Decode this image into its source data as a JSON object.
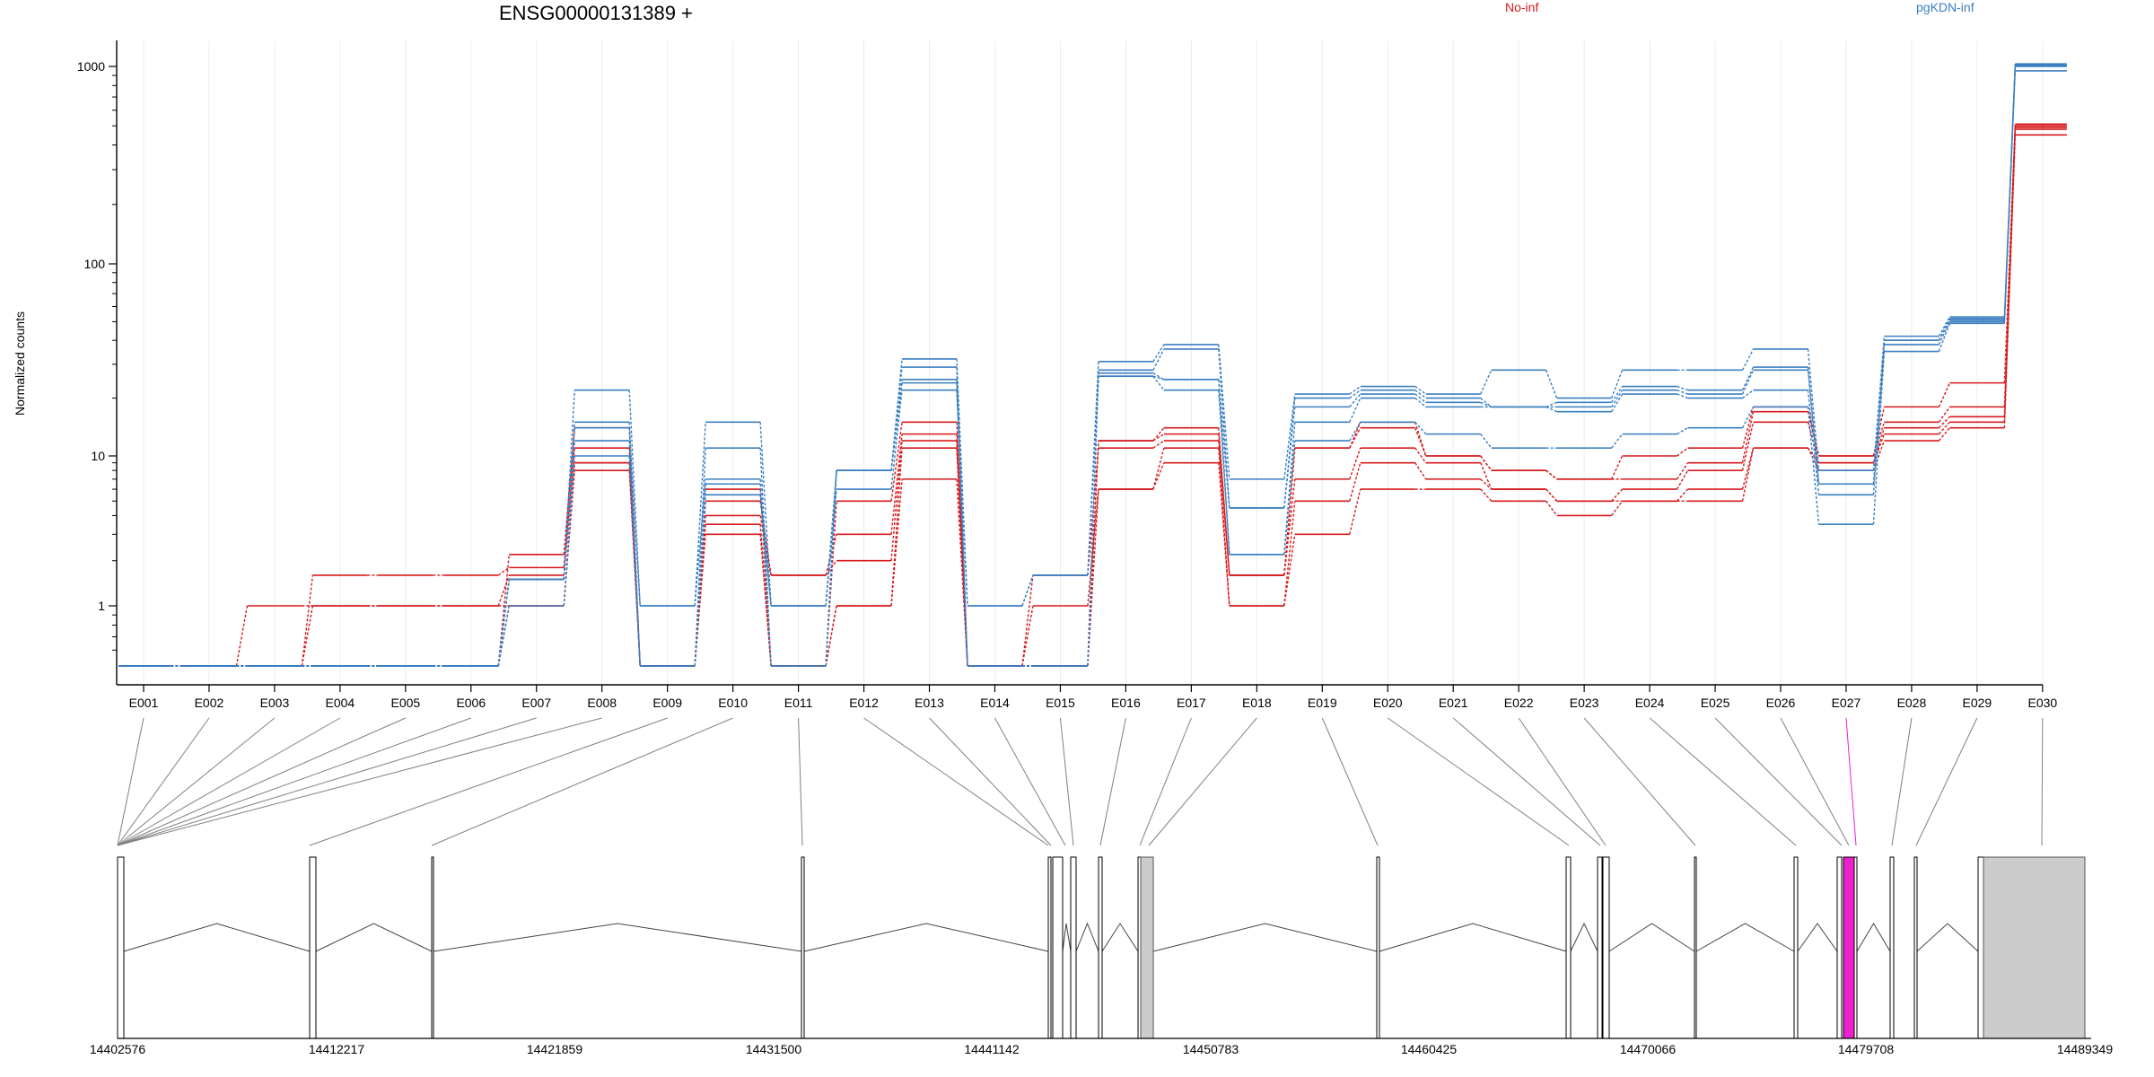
{
  "chart_data": {
    "type": "line",
    "title": "ENSG00000131389 +",
    "ylabel": "Normalized counts",
    "xlabel": "",
    "scale_y": "log",
    "ylim": [
      0.5,
      1100
    ],
    "y_ticks": [
      1,
      10,
      100,
      1000
    ],
    "y_tick_labels": [
      "1",
      "10",
      "100",
      "1000"
    ],
    "grid": "vertical, light",
    "legend_placement": "top",
    "colors": {
      "No-inf": "#d7191c",
      "pgKDN-inf": "#3a7fc1"
    },
    "categories": [
      "E001",
      "E002",
      "E003",
      "E004",
      "E005",
      "E006",
      "E007",
      "E008",
      "E009",
      "E010",
      "E011",
      "E012",
      "E013",
      "E014",
      "E015",
      "E016",
      "E017",
      "E018",
      "E019",
      "E020",
      "E021",
      "E022",
      "E023",
      "E024",
      "E025",
      "E026",
      "E027",
      "E028",
      "E029",
      "E030"
    ],
    "series": [
      {
        "name": "No-inf",
        "values": [
          0.5,
          0.5,
          1,
          1,
          1,
          1,
          1,
          8,
          0.5,
          3,
          0.5,
          1,
          7,
          0.5,
          0.5,
          6,
          9,
          1,
          3,
          6,
          6,
          5,
          4,
          5,
          5,
          11,
          8,
          12,
          14,
          450
        ]
      },
      {
        "name": "No-inf",
        "values": [
          0.5,
          0.5,
          0.5,
          1,
          1,
          1,
          1.6,
          9,
          0.5,
          3.5,
          0.5,
          1,
          11,
          0.5,
          1,
          6,
          11,
          1,
          5,
          9,
          7,
          6,
          5,
          5,
          6,
          11,
          9,
          13,
          15,
          480
        ]
      },
      {
        "name": "No-inf",
        "values": [
          0.5,
          0.5,
          0.5,
          0.5,
          0.5,
          0.5,
          1,
          9,
          0.5,
          4,
          1.6,
          2,
          12,
          0.5,
          1.6,
          11,
          12,
          1.6,
          7,
          11,
          9,
          6,
          5,
          6,
          8,
          15,
          9,
          14,
          16,
          490
        ]
      },
      {
        "name": "No-inf",
        "values": [
          0.5,
          0.5,
          0.5,
          1.6,
          1.6,
          1.6,
          1.8,
          11,
          0.5,
          5,
          1.6,
          3,
          13,
          0.5,
          0.5,
          12,
          13,
          1.6,
          11,
          14,
          10,
          8,
          7,
          7,
          9,
          17,
          10,
          15,
          18,
          500
        ]
      },
      {
        "name": "No-inf",
        "values": [
          0.5,
          0.5,
          0.5,
          0.5,
          0.5,
          0.5,
          2.2,
          14,
          0.5,
          6,
          0.5,
          5,
          15,
          0.5,
          0.5,
          12,
          14,
          1.6,
          11,
          15,
          10,
          8,
          7,
          10,
          11,
          18,
          10,
          18,
          24,
          510
        ]
      },
      {
        "name": "pgKDN-inf",
        "values": [
          0.5,
          0.5,
          0.5,
          0.5,
          0.5,
          0.5,
          1,
          10,
          0.5,
          5.5,
          1,
          6,
          22,
          1,
          1.6,
          26,
          22,
          2.2,
          12,
          15,
          13,
          11,
          11,
          13,
          14,
          18,
          3.5,
          35,
          49,
          950
        ]
      },
      {
        "name": "pgKDN-inf",
        "values": [
          0.5,
          0.5,
          0.5,
          0.5,
          0.5,
          0.5,
          1.5,
          12,
          0.5,
          6.5,
          1,
          8,
          24,
          0.5,
          0.5,
          26,
          25,
          2.2,
          15,
          20,
          18,
          18,
          17,
          21,
          20,
          22,
          5.5,
          38,
          50,
          1000
        ]
      },
      {
        "name": "pgKDN-inf",
        "values": [
          0.5,
          0.5,
          0.5,
          0.5,
          0.5,
          0.5,
          1.5,
          14,
          1,
          7,
          0.5,
          8,
          25,
          0.5,
          0.5,
          27,
          25,
          4.5,
          18,
          21,
          19,
          18,
          18,
          22,
          21,
          28,
          6.5,
          40,
          51,
          1010
        ]
      },
      {
        "name": "pgKDN-inf",
        "values": [
          0.5,
          0.5,
          0.5,
          0.5,
          0.5,
          0.5,
          1.5,
          15,
          0.5,
          11,
          0.5,
          8,
          29,
          0.5,
          0.5,
          28,
          36,
          4.5,
          20,
          22,
          20,
          18,
          19,
          23,
          22,
          29,
          6.5,
          40,
          52,
          1020
        ]
      },
      {
        "name": "pgKDN-inf",
        "values": [
          0.5,
          0.5,
          0.5,
          0.5,
          0.5,
          0.5,
          1.5,
          22,
          1,
          15,
          1,
          8,
          32,
          1,
          1.6,
          31,
          38,
          7,
          21,
          23,
          21,
          28,
          20,
          28,
          28,
          36,
          8,
          42,
          53,
          1030
        ]
      }
    ],
    "gene_model": {
      "coordinate_ticks": [
        "14402576",
        "14412217",
        "14421859",
        "14431500",
        "14441142",
        "14450783",
        "14460425",
        "14470066",
        "14479708",
        "14489349"
      ],
      "highlighted_exon": "E027",
      "highlight_color": "#ee1fcf"
    }
  }
}
